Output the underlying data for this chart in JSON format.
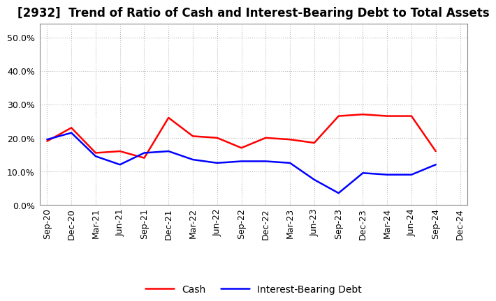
{
  "title": "[2932]  Trend of Ratio of Cash and Interest-Bearing Debt to Total Assets",
  "x_labels": [
    "Sep-20",
    "Dec-20",
    "Mar-21",
    "Jun-21",
    "Sep-21",
    "Dec-21",
    "Mar-22",
    "Jun-22",
    "Sep-22",
    "Dec-22",
    "Mar-23",
    "Jun-23",
    "Sep-23",
    "Dec-23",
    "Mar-24",
    "Jun-24",
    "Sep-24",
    "Dec-24"
  ],
  "cash": [
    0.19,
    0.23,
    0.155,
    0.16,
    0.14,
    0.26,
    0.205,
    0.2,
    0.17,
    0.2,
    0.195,
    0.185,
    0.265,
    0.27,
    0.265,
    0.265,
    0.16,
    null
  ],
  "debt": [
    0.195,
    0.215,
    0.145,
    0.12,
    0.155,
    0.16,
    0.135,
    0.125,
    0.13,
    0.13,
    0.125,
    0.075,
    0.035,
    0.095,
    0.09,
    0.09,
    0.12,
    null
  ],
  "cash_color": "#ff0000",
  "debt_color": "#0000ff",
  "ylim": [
    0.0,
    0.54
  ],
  "yticks": [
    0.0,
    0.1,
    0.2,
    0.3,
    0.4,
    0.5
  ],
  "background_color": "#ffffff",
  "grid_color": "#bbbbbb",
  "title_fontsize": 12,
  "tick_fontsize": 9,
  "legend_fontsize": 10,
  "linewidth": 1.8
}
